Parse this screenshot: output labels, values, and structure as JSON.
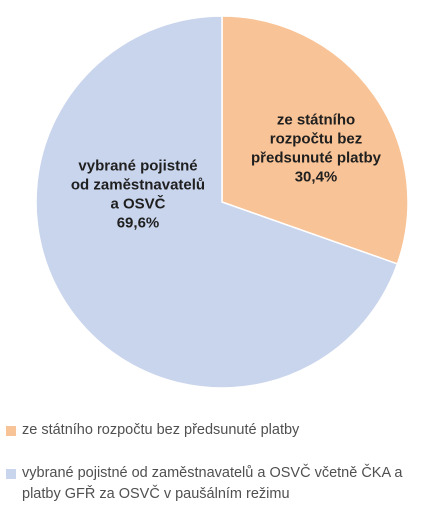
{
  "chart_data": {
    "type": "pie",
    "title": "",
    "slices": [
      {
        "label_lines": [
          "ze státního",
          "rozpočtu bez",
          "předsunuté platby"
        ],
        "value_text": "30,4%",
        "value": 30.4,
        "color": "#f8c396",
        "legend": "ze státního rozpočtu bez předsunuté platby"
      },
      {
        "label_lines": [
          "vybrané pojistné",
          "od zaměstnavatelů",
          "a OSVČ"
        ],
        "value_text": "69,6%",
        "value": 69.6,
        "color": "#c9d5ed",
        "legend": "vybrané pojistné od zaměstnavatelů a OSVČ včetně ČKA a platby GFŘ za OSVČ v paušálním režimu"
      }
    ],
    "legend_position": "bottom"
  }
}
